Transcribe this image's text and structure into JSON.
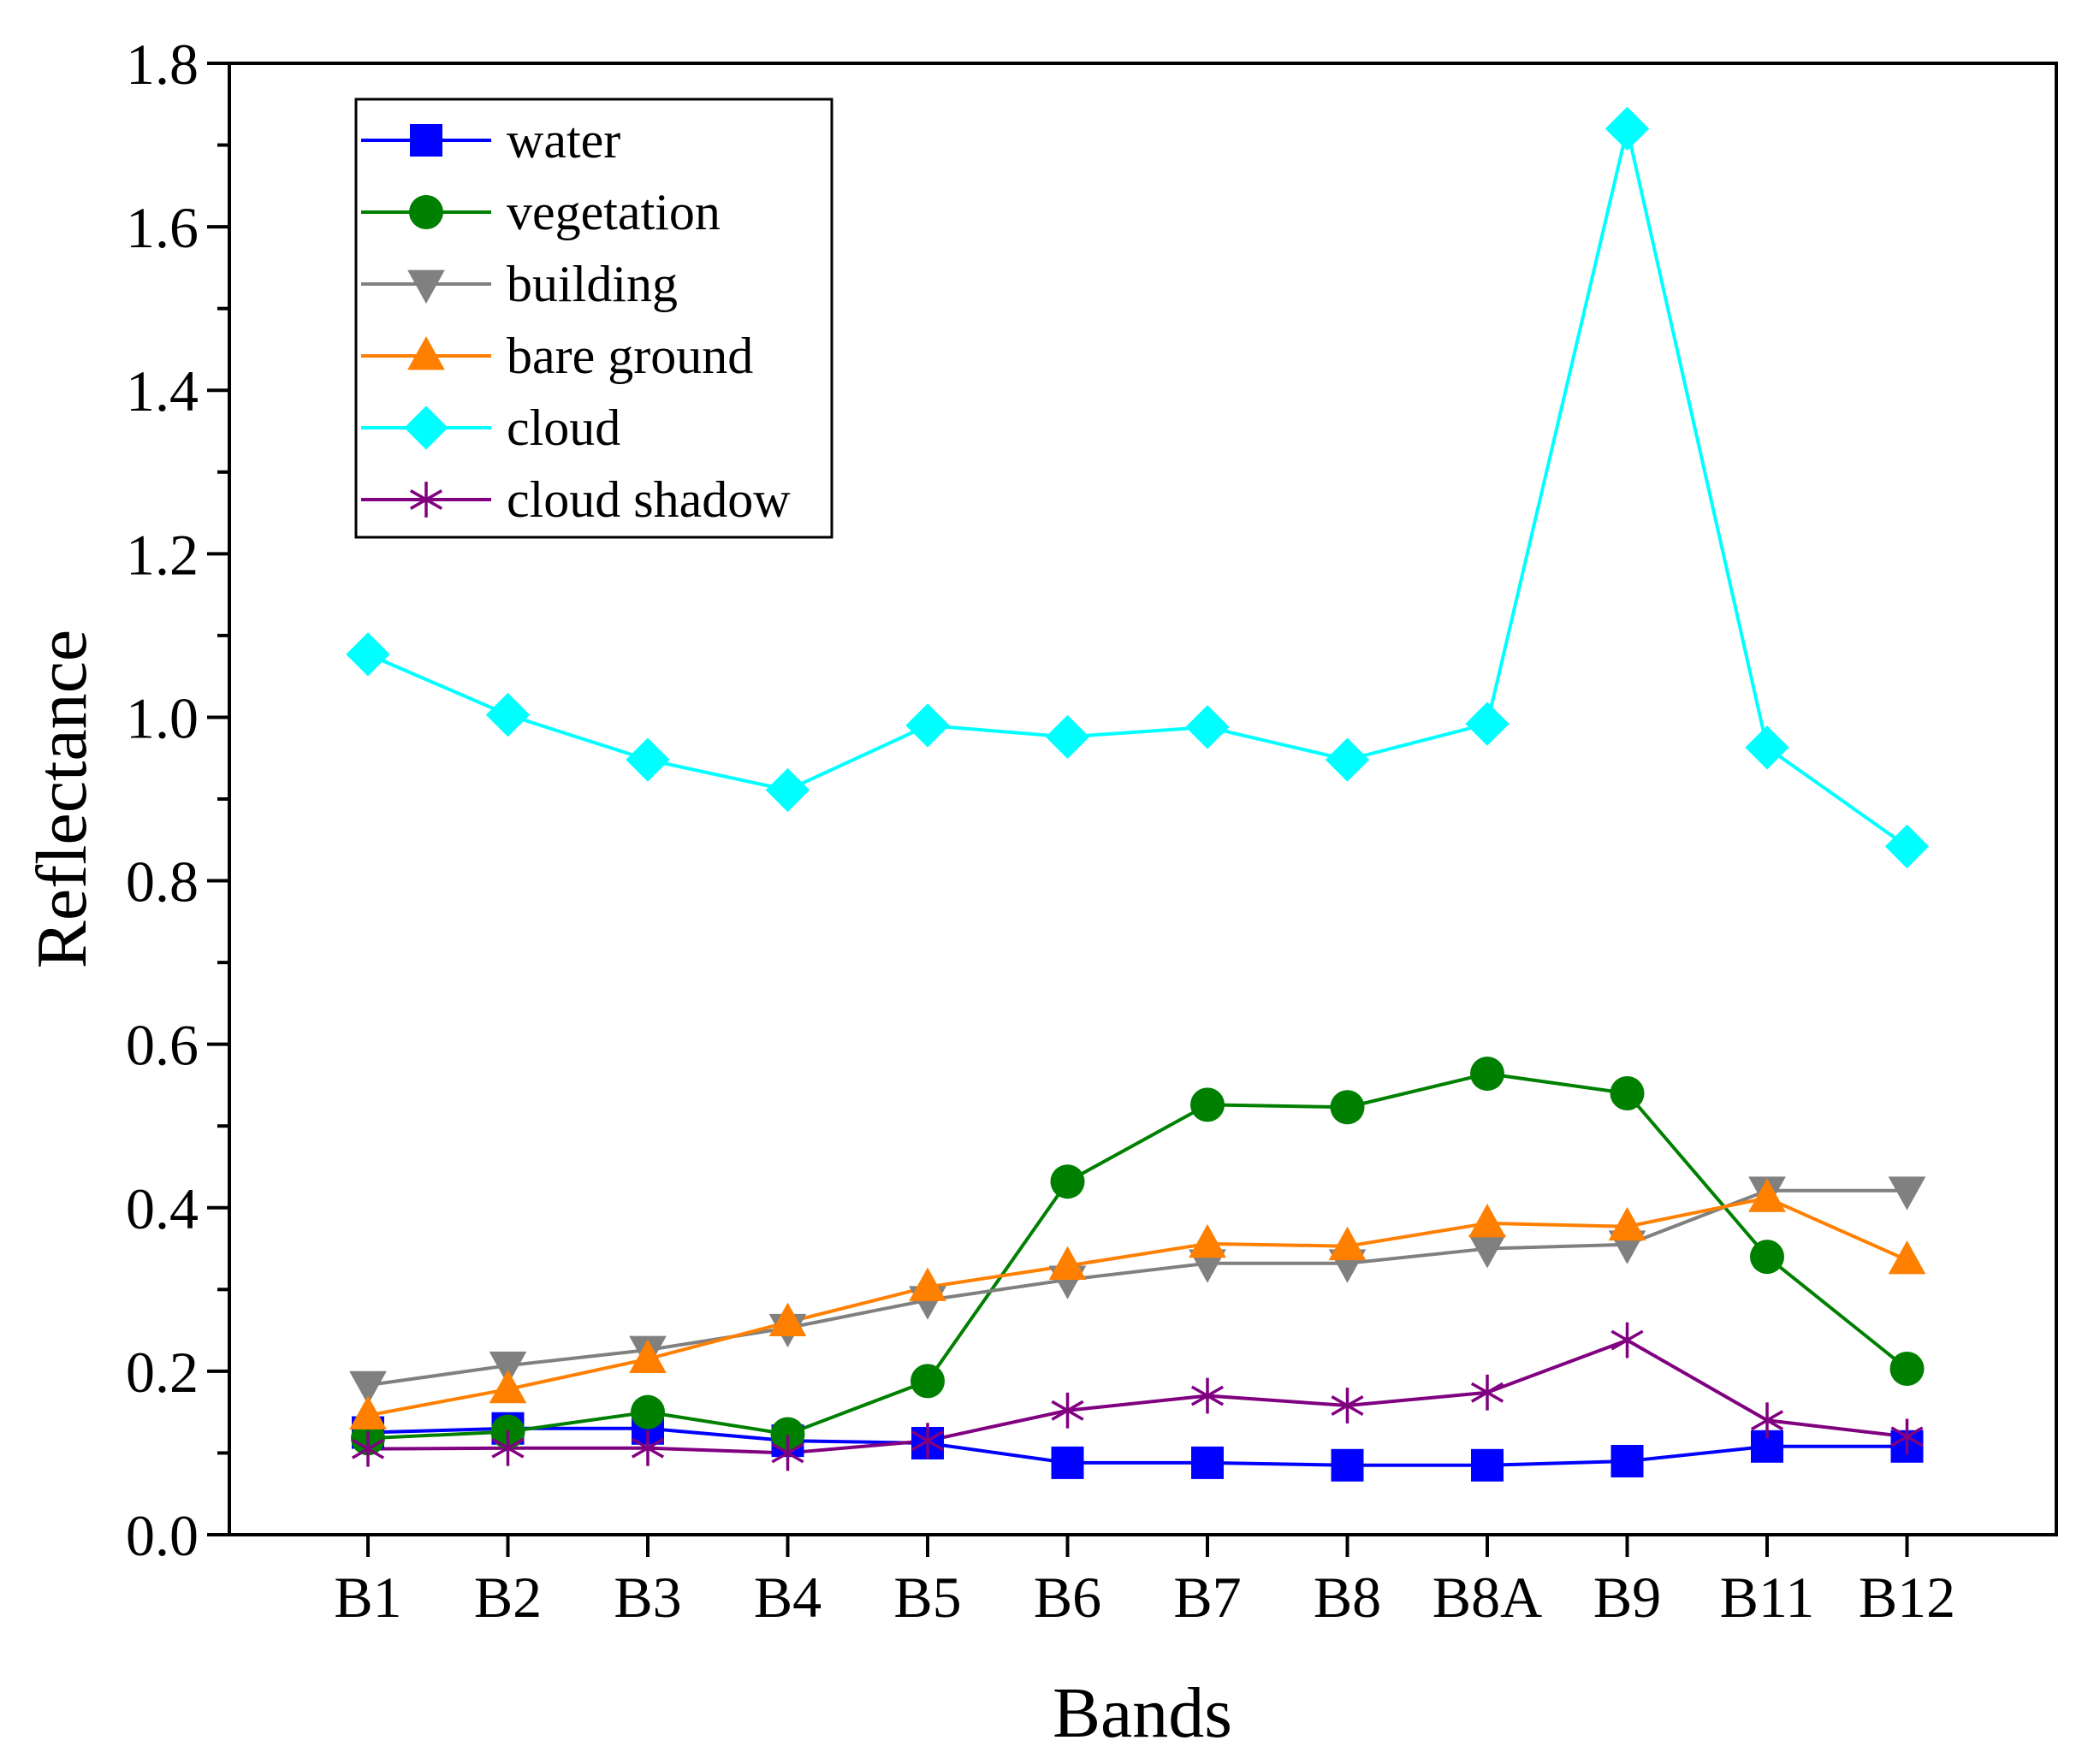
{
  "chart_data": {
    "type": "line",
    "xlabel": "Bands",
    "ylabel": "Reflectance",
    "categories": [
      "B1",
      "B2",
      "B3",
      "B4",
      "B5",
      "B6",
      "B7",
      "B8",
      "B8A",
      "B9",
      "B11",
      "B12"
    ],
    "ylim": [
      0,
      1.8
    ],
    "yticks": [
      "0.0",
      "0.2",
      "0.4",
      "0.6",
      "0.8",
      "1.0",
      "1.2",
      "1.4",
      "1.6",
      "1.8"
    ],
    "grid": false,
    "legend_position": "top-left",
    "series": [
      {
        "name": "water",
        "color": "#0000FF",
        "marker": "square",
        "values": [
          0.125,
          0.13,
          0.13,
          0.115,
          0.112,
          0.088,
          0.088,
          0.085,
          0.085,
          0.09,
          0.108,
          0.108
        ]
      },
      {
        "name": "vegetation",
        "color": "#008000",
        "marker": "circle",
        "values": [
          0.118,
          0.126,
          0.15,
          0.123,
          0.188,
          0.432,
          0.526,
          0.523,
          0.564,
          0.54,
          0.34,
          0.203
        ]
      },
      {
        "name": "building",
        "color": "#808080",
        "marker": "triangle-down",
        "values": [
          0.183,
          0.207,
          0.226,
          0.253,
          0.287,
          0.312,
          0.332,
          0.332,
          0.35,
          0.355,
          0.421,
          0.421
        ]
      },
      {
        "name": "bare ground",
        "color": "#FF8000",
        "marker": "triangle-up",
        "values": [
          0.146,
          0.178,
          0.215,
          0.26,
          0.303,
          0.329,
          0.356,
          0.353,
          0.381,
          0.377,
          0.412,
          0.336
        ]
      },
      {
        "name": "cloud",
        "color": "#00FFFF",
        "marker": "diamond",
        "values": [
          1.077,
          1.003,
          0.948,
          0.911,
          0.99,
          0.976,
          0.988,
          0.948,
          0.992,
          1.72,
          0.963,
          0.842
        ]
      },
      {
        "name": "cloud shadow",
        "color": "#800080",
        "marker": "asterisk",
        "values": [
          0.105,
          0.106,
          0.106,
          0.1,
          0.115,
          0.152,
          0.17,
          0.158,
          0.174,
          0.238,
          0.14,
          0.12
        ]
      }
    ]
  }
}
